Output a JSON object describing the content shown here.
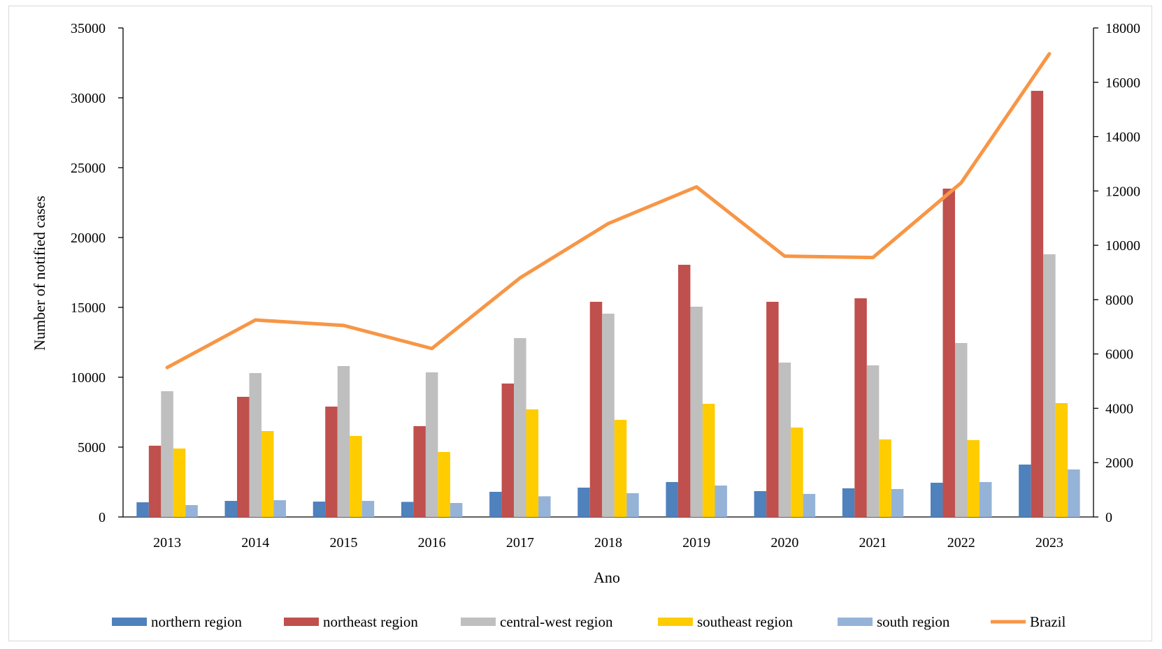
{
  "chart_data": {
    "type": "bar",
    "xlabel": "Ano",
    "ylabel": "Number of notified cases",
    "y2label": "",
    "ylim": [
      0,
      35000
    ],
    "y2lim": [
      0,
      18000
    ],
    "yticks": [
      "0",
      "5000",
      "10000",
      "15000",
      "20000",
      "25000",
      "30000",
      "35000"
    ],
    "y2ticks": [
      "0",
      "2000",
      "4000",
      "6000",
      "8000",
      "10000",
      "12000",
      "14000",
      "16000",
      "18000"
    ],
    "categories": [
      "2013",
      "2014",
      "2015",
      "2016",
      "2017",
      "2018",
      "2019",
      "2020",
      "2021",
      "2022",
      "2023"
    ],
    "grid": false,
    "legend_position": "bottom",
    "series": [
      {
        "name": "northern region",
        "type": "bar",
        "axis": "left",
        "color": "#4f81bd",
        "values": [
          1050,
          1150,
          1100,
          1080,
          1800,
          2100,
          2500,
          1850,
          2050,
          2450,
          3750
        ]
      },
      {
        "name": "northeast region",
        "type": "bar",
        "axis": "left",
        "color": "#c0504d",
        "values": [
          5100,
          8600,
          7900,
          6500,
          9550,
          15400,
          18050,
          15400,
          15650,
          23500,
          30500
        ]
      },
      {
        "name": "central-west region",
        "type": "bar",
        "axis": "left",
        "color": "#bfbfbf",
        "values": [
          9000,
          10300,
          10800,
          10350,
          12800,
          14550,
          15050,
          11050,
          10850,
          12450,
          18800
        ]
      },
      {
        "name": "southeast region",
        "type": "bar",
        "axis": "left",
        "color": "#ffcc00",
        "values": [
          4900,
          6150,
          5800,
          4650,
          7700,
          6950,
          8100,
          6400,
          5550,
          5500,
          8150
        ]
      },
      {
        "name": "south region",
        "type": "bar",
        "axis": "left",
        "color": "#95b3d7",
        "values": [
          850,
          1200,
          1150,
          1000,
          1480,
          1700,
          2250,
          1650,
          2000,
          2500,
          3400
        ]
      },
      {
        "name": "Brazil",
        "type": "line",
        "axis": "right",
        "color": "#f79646",
        "values": [
          5500,
          7250,
          7050,
          6200,
          8800,
          10800,
          12150,
          9600,
          9550,
          12300,
          17050
        ]
      }
    ]
  }
}
